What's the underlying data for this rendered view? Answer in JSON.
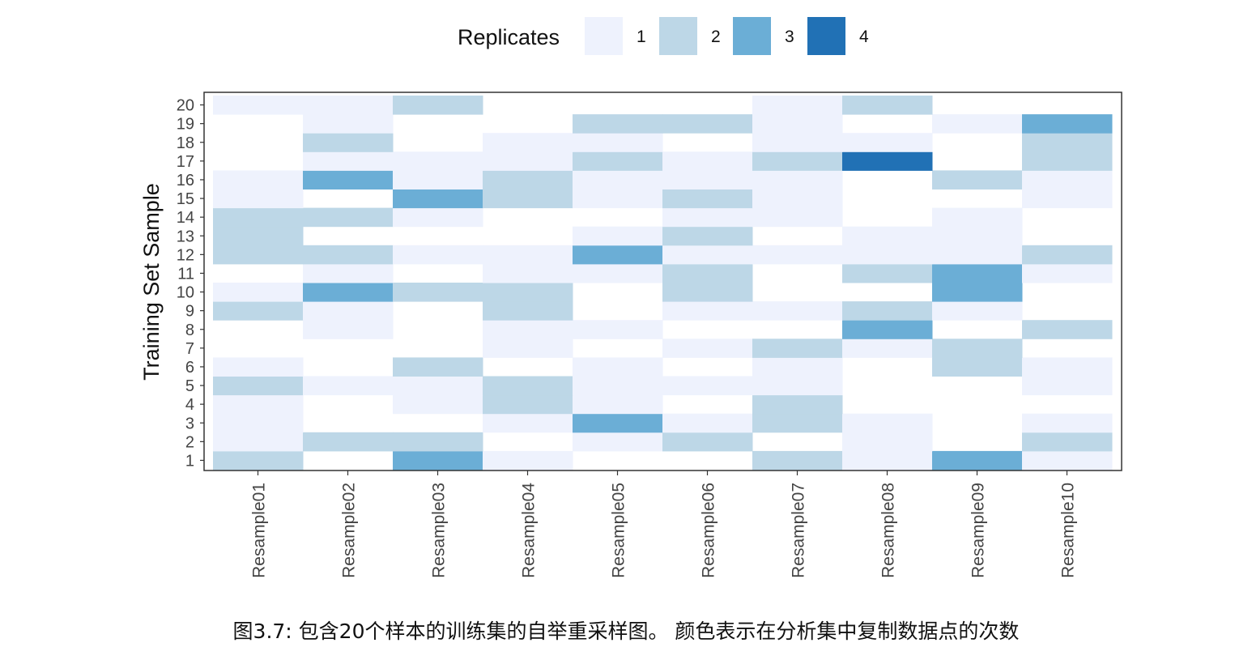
{
  "chart_data": {
    "type": "heatmap",
    "title": "",
    "xlabel": "",
    "ylabel": "Training Set Sample",
    "x": [
      "Resample01",
      "Resample02",
      "Resample03",
      "Resample04",
      "Resample05",
      "Resample06",
      "Resample07",
      "Resample08",
      "Resample09",
      "Resample10"
    ],
    "y": [
      "1",
      "2",
      "3",
      "4",
      "5",
      "6",
      "7",
      "8",
      "9",
      "10",
      "11",
      "12",
      "13",
      "14",
      "15",
      "16",
      "17",
      "18",
      "19",
      "20"
    ],
    "legend": {
      "title": "Replicates",
      "position": "top",
      "levels": [
        "1",
        "2",
        "3",
        "4"
      ],
      "colors": [
        "#eef2fd",
        "#bdd7e7",
        "#6baed6",
        "#2171b5"
      ]
    },
    "values": [
      [
        2,
        0,
        3,
        1,
        0,
        0,
        2,
        1,
        3,
        1
      ],
      [
        1,
        2,
        2,
        0,
        1,
        2,
        0,
        1,
        0,
        2
      ],
      [
        1,
        0,
        0,
        1,
        3,
        1,
        2,
        1,
        0,
        1
      ],
      [
        1,
        0,
        1,
        2,
        1,
        0,
        2,
        0,
        0,
        0
      ],
      [
        2,
        1,
        1,
        2,
        1,
        1,
        1,
        0,
        0,
        1
      ],
      [
        1,
        0,
        2,
        0,
        1,
        0,
        1,
        0,
        2,
        1
      ],
      [
        0,
        0,
        0,
        1,
        0,
        1,
        2,
        1,
        2,
        0
      ],
      [
        0,
        1,
        0,
        1,
        1,
        0,
        0,
        3,
        0,
        2
      ],
      [
        2,
        1,
        0,
        2,
        0,
        1,
        1,
        2,
        1,
        0
      ],
      [
        1,
        3,
        2,
        2,
        0,
        2,
        0,
        0,
        3,
        0
      ],
      [
        0,
        1,
        0,
        1,
        1,
        2,
        0,
        2,
        3,
        1
      ],
      [
        2,
        2,
        1,
        1,
        3,
        1,
        1,
        1,
        1,
        2
      ],
      [
        2,
        0,
        0,
        0,
        1,
        2,
        0,
        1,
        1,
        0
      ],
      [
        2,
        2,
        1,
        0,
        0,
        1,
        1,
        0,
        1,
        0
      ],
      [
        1,
        0,
        3,
        2,
        1,
        2,
        1,
        0,
        0,
        1
      ],
      [
        1,
        3,
        1,
        2,
        1,
        1,
        1,
        0,
        2,
        1
      ],
      [
        0,
        1,
        1,
        1,
        2,
        1,
        2,
        4,
        0,
        2
      ],
      [
        0,
        2,
        0,
        1,
        1,
        0,
        1,
        1,
        0,
        2
      ],
      [
        0,
        1,
        0,
        0,
        2,
        2,
        1,
        0,
        1,
        3
      ],
      [
        1,
        1,
        2,
        0,
        0,
        0,
        1,
        2,
        0,
        0
      ]
    ]
  },
  "caption": "图3.7: 包含20个样本的训练集的自举重采样图。 颜色表示在分析集中复制数据点的次数"
}
